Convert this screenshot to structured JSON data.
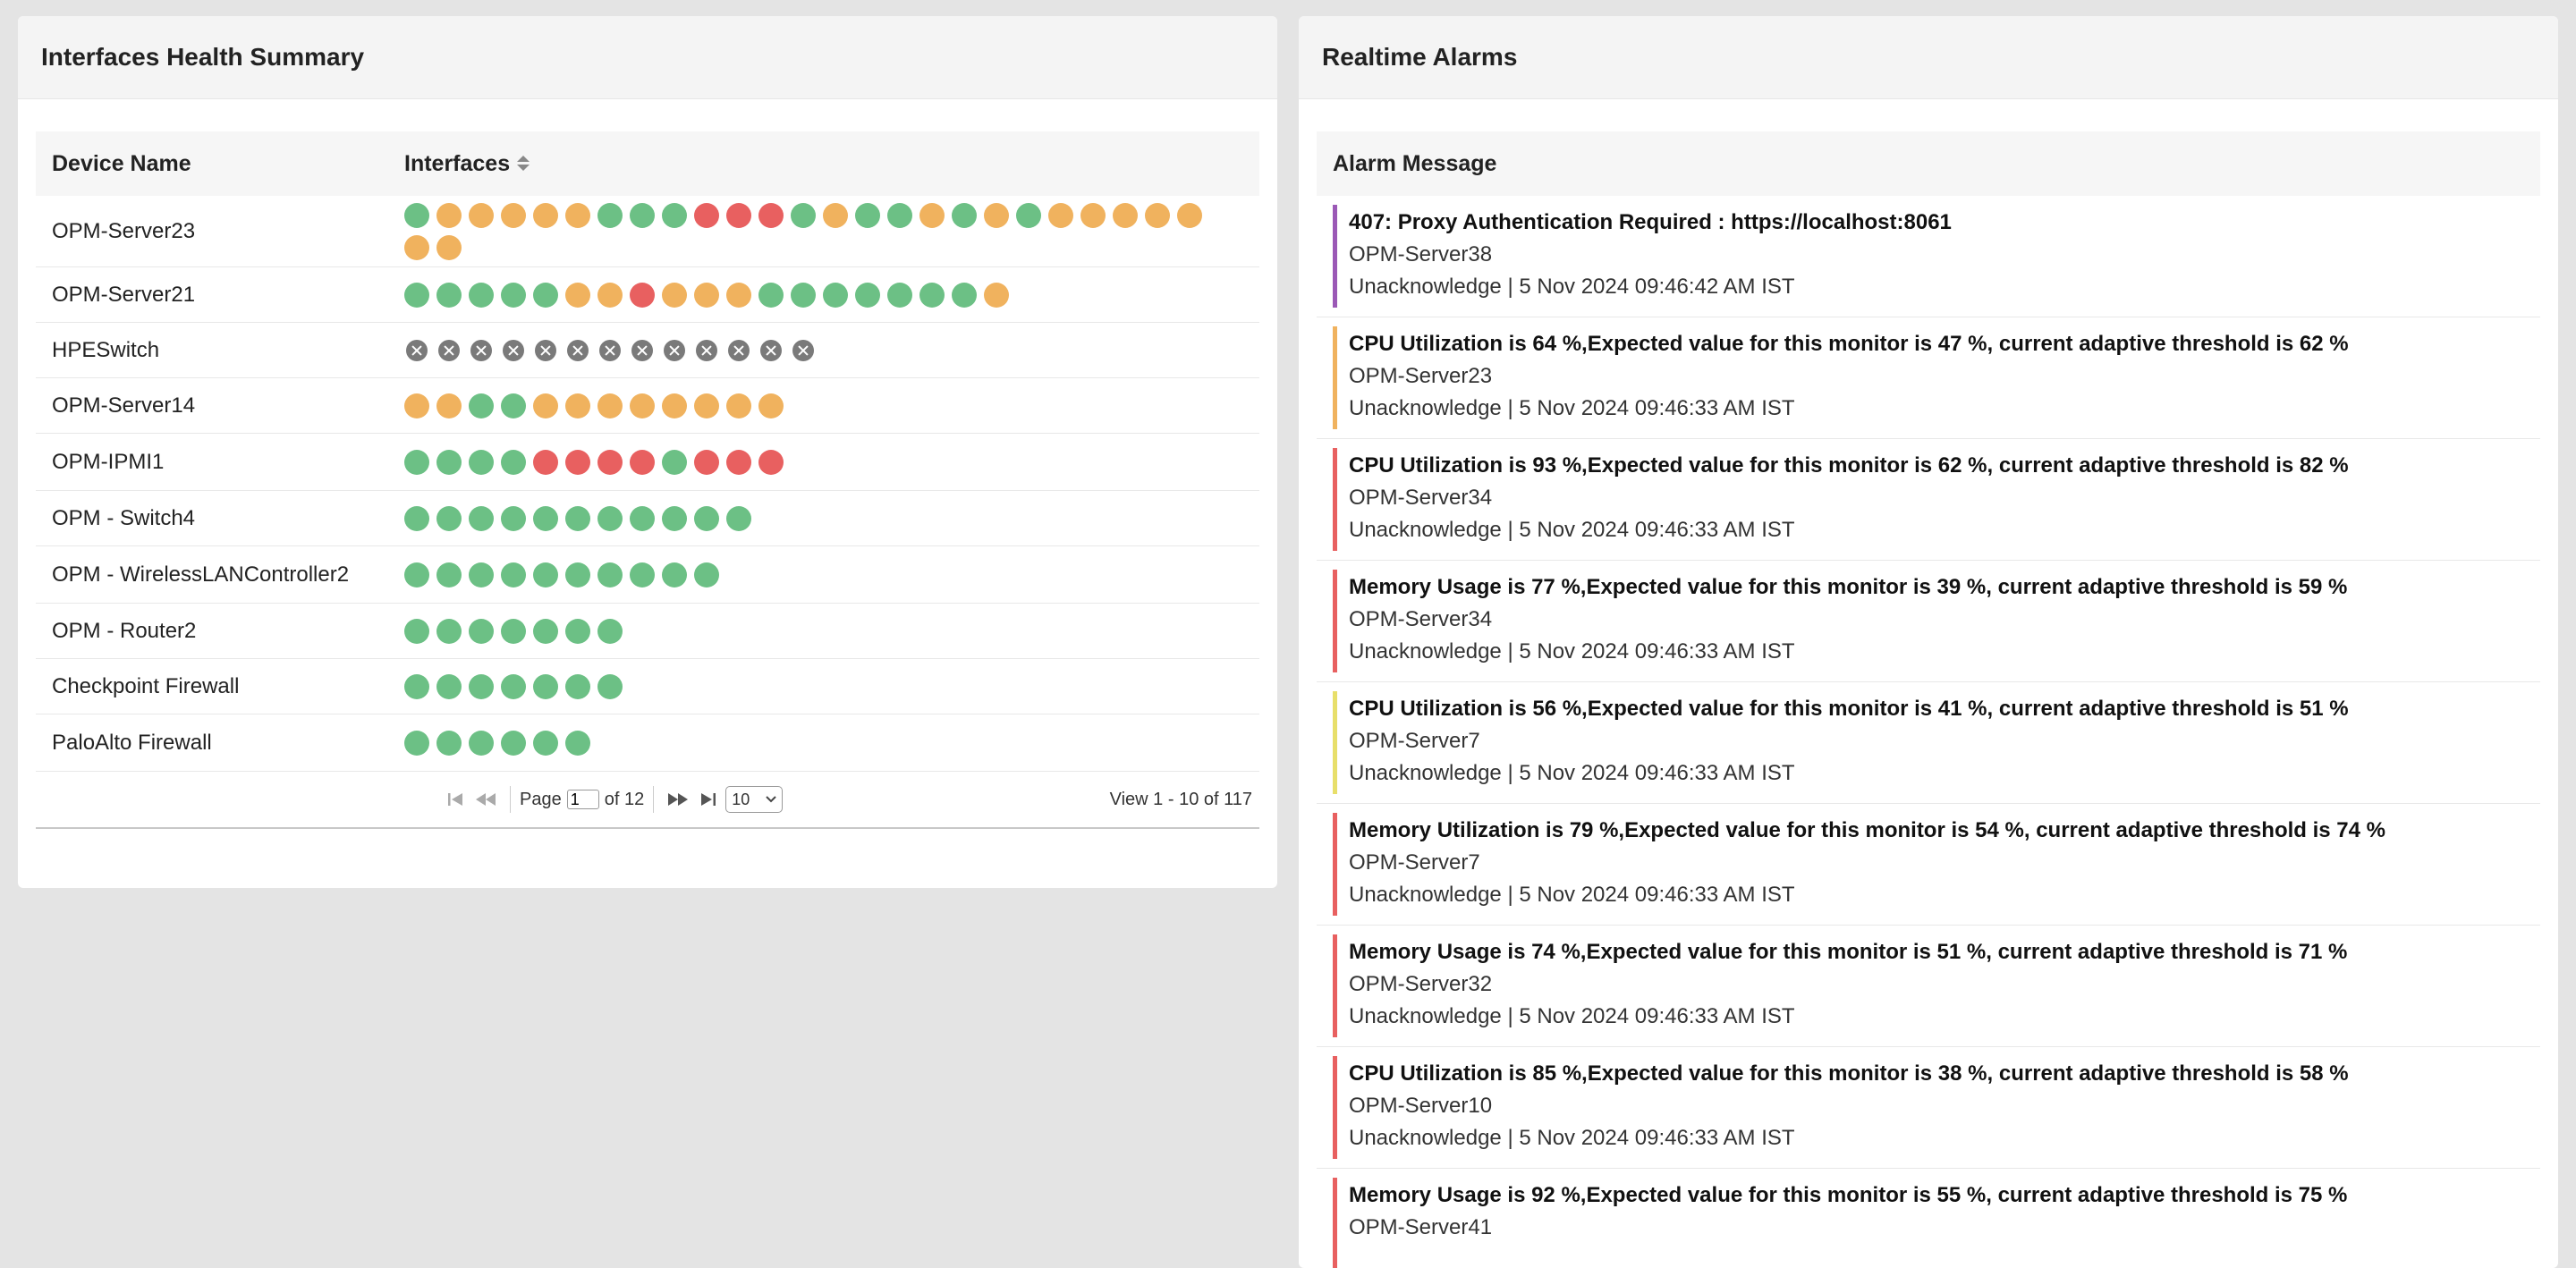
{
  "left_panel": {
    "title": "Interfaces Health Summary",
    "columns": {
      "device": "Device Name",
      "interfaces": "Interfaces"
    },
    "rows": [
      {
        "device": "OPM-Server23",
        "interfaces": [
          "green",
          "orange",
          "orange",
          "orange",
          "orange",
          "orange",
          "green",
          "green",
          "green",
          "red",
          "red",
          "red",
          "green",
          "orange",
          "green",
          "green",
          "orange",
          "green",
          "orange",
          "green",
          "orange",
          "orange",
          "orange",
          "orange",
          "orange",
          "orange",
          "orange"
        ]
      },
      {
        "device": "OPM-Server21",
        "interfaces": [
          "green",
          "green",
          "green",
          "green",
          "green",
          "orange",
          "orange",
          "red",
          "orange",
          "orange",
          "orange",
          "green",
          "green",
          "green",
          "green",
          "green",
          "green",
          "green",
          "orange"
        ]
      },
      {
        "device": "HPESwitch",
        "interfaces": [
          "grey",
          "grey",
          "grey",
          "grey",
          "grey",
          "grey",
          "grey",
          "grey",
          "grey",
          "grey",
          "grey",
          "grey",
          "grey"
        ]
      },
      {
        "device": "OPM-Server14",
        "interfaces": [
          "orange",
          "orange",
          "green",
          "green",
          "orange",
          "orange",
          "orange",
          "orange",
          "orange",
          "orange",
          "orange",
          "orange"
        ]
      },
      {
        "device": "OPM-IPMI1",
        "interfaces": [
          "green",
          "green",
          "green",
          "green",
          "red",
          "red",
          "red",
          "red",
          "green",
          "red",
          "red",
          "red"
        ]
      },
      {
        "device": "OPM - Switch4",
        "interfaces": [
          "green",
          "green",
          "green",
          "green",
          "green",
          "green",
          "green",
          "green",
          "green",
          "green",
          "green"
        ]
      },
      {
        "device": "OPM - WirelessLANController2",
        "interfaces": [
          "green",
          "green",
          "green",
          "green",
          "green",
          "green",
          "green",
          "green",
          "green",
          "green"
        ]
      },
      {
        "device": "OPM - Router2",
        "interfaces": [
          "green",
          "green",
          "green",
          "green",
          "green",
          "green",
          "green"
        ]
      },
      {
        "device": "Checkpoint Firewall",
        "interfaces": [
          "green",
          "green",
          "green",
          "green",
          "green",
          "green",
          "green"
        ]
      },
      {
        "device": "PaloAlto Firewall",
        "interfaces": [
          "green",
          "green",
          "green",
          "green",
          "green",
          "green"
        ]
      }
    ],
    "pager": {
      "page_label": "Page",
      "page_value": "1",
      "of_label": "of 12",
      "page_size": "10",
      "view_count": "View 1 - 10 of 117"
    }
  },
  "right_panel": {
    "title": "Realtime Alarms",
    "column": "Alarm Message",
    "alarms": [
      {
        "message": "407: Proxy Authentication Required : https://localhost:8061",
        "device": "OPM-Server38",
        "status": "Unacknowledge | 5 Nov 2024 09:46:42 AM IST",
        "color": "#9b59b6"
      },
      {
        "message": "CPU Utilization is 64 %,Expected value for this monitor is 47 %, current adaptive threshold is 62 %",
        "device": "OPM-Server23",
        "status": "Unacknowledge | 5 Nov 2024 09:46:33 AM IST",
        "color": "#f0b25e"
      },
      {
        "message": "CPU Utilization is 93 %,Expected value for this monitor is 62 %, current adaptive threshold is 82 %",
        "device": "OPM-Server34",
        "status": "Unacknowledge | 5 Nov 2024 09:46:33 AM IST",
        "color": "#e86060"
      },
      {
        "message": "Memory Usage is 77 %,Expected value for this monitor is 39 %, current adaptive threshold is 59 %",
        "device": "OPM-Server34",
        "status": "Unacknowledge | 5 Nov 2024 09:46:33 AM IST",
        "color": "#e86060"
      },
      {
        "message": "CPU Utilization is 56 %,Expected value for this monitor is 41 %, current adaptive threshold is 51 %",
        "device": "OPM-Server7",
        "status": "Unacknowledge | 5 Nov 2024 09:46:33 AM IST",
        "color": "#e8df6a"
      },
      {
        "message": "Memory Utilization is 79 %,Expected value for this monitor is 54 %, current adaptive threshold is 74 %",
        "device": "OPM-Server7",
        "status": "Unacknowledge | 5 Nov 2024 09:46:33 AM IST",
        "color": "#e86060"
      },
      {
        "message": "Memory Usage is 74 %,Expected value for this monitor is 51 %, current adaptive threshold is 71 %",
        "device": "OPM-Server32",
        "status": "Unacknowledge | 5 Nov 2024 09:46:33 AM IST",
        "color": "#e86060"
      },
      {
        "message": "CPU Utilization is 85 %,Expected value for this monitor is 38 %, current adaptive threshold is 58 %",
        "device": "OPM-Server10",
        "status": "Unacknowledge | 5 Nov 2024 09:46:33 AM IST",
        "color": "#e86060"
      },
      {
        "message": "Memory Usage is 92 %,Expected value for this monitor is 55 %, current adaptive threshold is 75 %",
        "device": "OPM-Server41",
        "status": "",
        "color": "#e86060"
      }
    ]
  }
}
